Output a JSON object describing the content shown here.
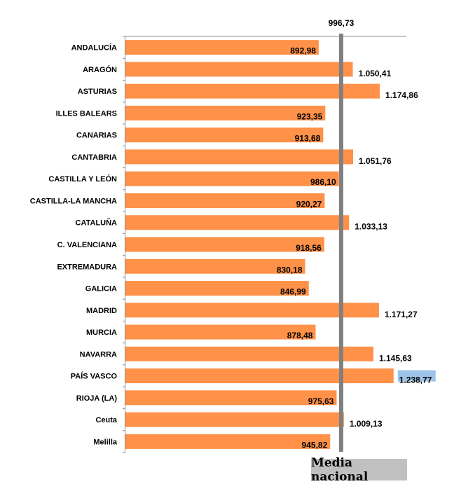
{
  "chart_data": {
    "type": "bar",
    "orientation": "horizontal",
    "categories": [
      "ANDALUCÍA",
      "ARAGÓN",
      "ASTURIAS",
      "ILLES BALEARS",
      "CANARIAS",
      "CANTABRIA",
      "CASTILLA Y LEÓN",
      "CASTILLA-LA MANCHA",
      "CATALUÑA",
      "C. VALENCIANA",
      "EXTREMADURA",
      "GALICIA",
      "MADRID",
      "MURCIA",
      "NAVARRA",
      "PAÍS VASCO",
      "RIOJA (LA)",
      "Ceuta",
      "Melilla"
    ],
    "values": [
      892.98,
      1050.41,
      1174.86,
      923.35,
      913.68,
      1051.76,
      986.1,
      920.27,
      1033.13,
      918.56,
      830.18,
      846.99,
      1171.27,
      878.48,
      1145.63,
      1238.77,
      975.63,
      1009.13,
      945.82
    ],
    "value_labels": [
      "892,98",
      "1.050,41",
      "1.174,86",
      "923,35",
      "913,68",
      "1.051,76",
      "986,10",
      "920,27",
      "1.033,13",
      "918,56",
      "830,18",
      "846,99",
      "1.171,27",
      "878,48",
      "1.145,63",
      "1.238,77",
      "975,63",
      "1.009,13",
      "945,82"
    ],
    "highlighted_label": "PAÍS VASCO",
    "reference_line": {
      "name": "Media nacional",
      "value": 996.73,
      "label": "996,73"
    },
    "xlim": [
      0,
      1300
    ],
    "grid": false,
    "legend_position": "bottom-right",
    "colors": {
      "bar": "#FF9148",
      "reference_line": "#808080",
      "highlight": "#9DC3E6",
      "legend_bg": "#C0C0C0"
    }
  }
}
